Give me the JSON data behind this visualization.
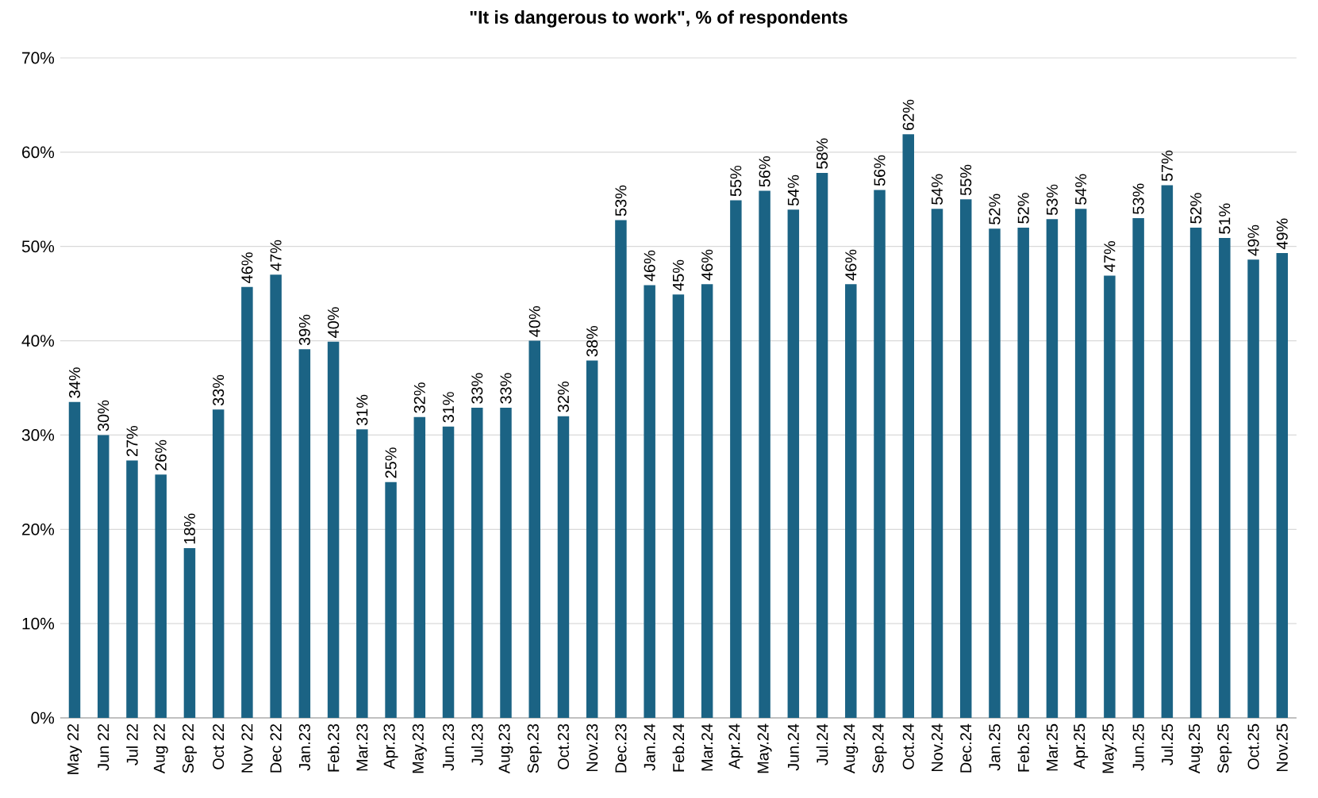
{
  "chart_data": {
    "type": "bar",
    "title": "\"It is dangerous to work\", % of respondents",
    "categories": [
      "May 22",
      "Jun 22",
      "Jul 22",
      "Aug 22",
      "Sep 22",
      "Oct 22",
      "Nov 22",
      "Dec 22",
      "Jan.23",
      "Feb.23",
      "Mar.23",
      "Apr.23",
      "May.23",
      "Jun.23",
      "Jul.23",
      "Aug.23",
      "Sep.23",
      "Oct.23",
      "Nov.23",
      "Dec.23",
      "Jan.24",
      "Feb.24",
      "Mar.24",
      "Apr.24",
      "May.24",
      "Jun.24",
      "Jul.24",
      "Aug.24",
      "Sep.24",
      "Oct.24",
      "Nov.24",
      "Dec.24",
      "Jan.25",
      "Feb.25",
      "Mar.25",
      "Apr.25",
      "May.25",
      "Jun.25",
      "Jul.25",
      "Aug.25",
      "Sep.25",
      "Oct.25",
      "Nov.25"
    ],
    "values": [
      33.5,
      30,
      27.3,
      25.8,
      18,
      32.7,
      45.7,
      47,
      39.1,
      39.9,
      30.6,
      25,
      31.9,
      30.9,
      32.9,
      32.9,
      40,
      32,
      37.9,
      52.8,
      45.9,
      44.9,
      46,
      54.9,
      55.9,
      53.9,
      57.8,
      46,
      56,
      61.9,
      54,
      55,
      51.9,
      52,
      52.9,
      54,
      46.9,
      53,
      56.5,
      52,
      50.9,
      48.6,
      49.3
    ],
    "value_labels": [
      "34%",
      "30%",
      "27%",
      "26%",
      "18%",
      "33%",
      "46%",
      "47%",
      "39%",
      "40%",
      "31%",
      "25%",
      "32%",
      "31%",
      "33%",
      "33%",
      "40%",
      "32%",
      "38%",
      "53%",
      "46%",
      "45%",
      "46%",
      "55%",
      "56%",
      "54%",
      "58%",
      "46%",
      "56%",
      "62%",
      "54%",
      "55%",
      "52%",
      "52%",
      "53%",
      "54%",
      "47%",
      "53%",
      "57%",
      "52%",
      "51%",
      "49%",
      "49%"
    ],
    "color": "#1b6384",
    "ylim": [
      0,
      70
    ],
    "yticks": [
      {
        "value": 0,
        "label": "0%"
      },
      {
        "value": 10,
        "label": "10%"
      },
      {
        "value": 20,
        "label": "20%"
      },
      {
        "value": 30,
        "label": "30%"
      },
      {
        "value": 40,
        "label": "40%"
      },
      {
        "value": 50,
        "label": "50%"
      },
      {
        "value": 60,
        "label": "60%"
      },
      {
        "value": 70,
        "label": "70%"
      }
    ],
    "grid": "y"
  }
}
